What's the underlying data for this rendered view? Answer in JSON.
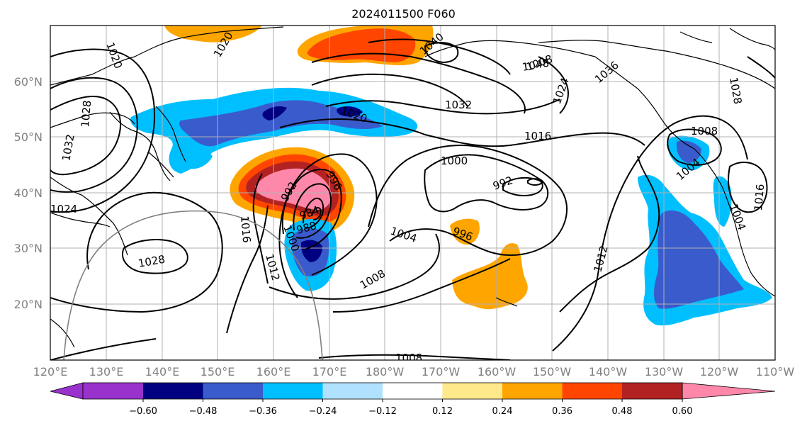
{
  "title": "2024011500 F060",
  "lon_labels": [
    "120°E",
    "130°E",
    "140°E",
    "150°E",
    "160°E",
    "170°E",
    "180°W",
    "170°W",
    "160°W",
    "150°W",
    "140°W",
    "130°W",
    "120°W",
    "110°W"
  ],
  "lat_labels": [
    "60°N",
    "50°N",
    "40°N",
    "30°N",
    "20°N"
  ],
  "colorbar": {
    "colors": [
      "#9932cc",
      "#000080",
      "#3a5bcc",
      "#00bfff",
      "#b0e2ff",
      "#ffffff",
      "#ffe98a",
      "#ffa500",
      "#ff4500",
      "#b22222",
      "#ff88aa"
    ],
    "tick_labels": [
      "−0.60",
      "−0.48",
      "−0.36",
      "−0.24",
      "−0.12",
      "0.12",
      "0.24",
      "0.36",
      "0.48",
      "0.60"
    ]
  },
  "isobar_labels": [
    "1020",
    "1020",
    "1028",
    "1032",
    "1024",
    "1028",
    "1016",
    "1012",
    "1000",
    "1008",
    "1004",
    "988",
    "984",
    "992",
    "996",
    "1000",
    "1008",
    "1016",
    "1020",
    "1032",
    "1040",
    "1036",
    "1024",
    "1028",
    "1016",
    "1004",
    "992",
    "996",
    "1012",
    "1008",
    "1004",
    "1008",
    "1048"
  ]
}
